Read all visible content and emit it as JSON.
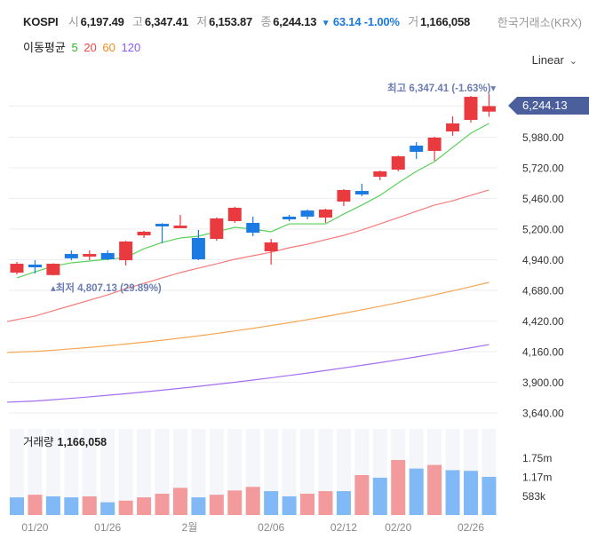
{
  "header": {
    "symbol": "KOSPI",
    "open_label": "시",
    "open": "6,197.49",
    "high_label": "고",
    "high": "6,347.41",
    "low_label": "저",
    "low": "6,153.87",
    "close_label": "종",
    "close": "6,244.13",
    "change_arrow": "▼",
    "change": "63.14",
    "change_pct": "-1.00%",
    "volume_label": "거",
    "volume": "1,166,058",
    "source": "한국거래소(KRX)"
  },
  "moving_average": {
    "label": "이동평균",
    "periods": [
      {
        "label": "5",
        "color": "#2cb52c"
      },
      {
        "label": "20",
        "color": "#f04646"
      },
      {
        "label": "60",
        "color": "#f5891f"
      },
      {
        "label": "120",
        "color": "#8a5cf5"
      }
    ]
  },
  "scale_select": {
    "value": "Linear"
  },
  "annotations": {
    "high": "최고 6,347.41 (-1.63%)▾",
    "low": "▴최저 4,807.13 (29.89%)"
  },
  "current_price_tag": "6,244.13",
  "volume_panel": {
    "label": "거래량",
    "value": "1,166,058"
  },
  "colors": {
    "up": "#e93a3f",
    "down": "#1b7be3",
    "vol_up": "#f29a9c",
    "vol_down": "#80b9f5",
    "ma5": "#5ad15a",
    "ma20": "#f77a7a",
    "ma60": "#f6a552",
    "ma120": "#a56df0",
    "tag": "#4a5f9c"
  },
  "chart_data": {
    "type": "candlestick",
    "x_tick_labels": [
      {
        "index": 1,
        "label": "01/20"
      },
      {
        "index": 5,
        "label": "01/26"
      },
      {
        "index": 10,
        "label": "2월"
      },
      {
        "index": 14,
        "label": "02/06"
      },
      {
        "index": 18,
        "label": "02/12"
      },
      {
        "index": 21,
        "label": "02/20"
      },
      {
        "index": 25,
        "label": "02/26"
      }
    ],
    "price_axis": {
      "ylim": [
        3640,
        6244.13
      ],
      "ticks": [
        "5,980.00",
        "5,720.00",
        "5,460.00",
        "5,200.00",
        "4,940.00",
        "4,680.00",
        "4,420.00",
        "4,160.00",
        "3,900.00",
        "3,640.00"
      ],
      "tick_values": [
        5980,
        5720,
        5460,
        5200,
        4940,
        4680,
        4420,
        4160,
        3900,
        3640
      ]
    },
    "candles": [
      {
        "o": 4831,
        "h": 4921,
        "l": 4816,
        "c": 4906
      },
      {
        "o": 4899,
        "h": 4936,
        "l": 4823,
        "c": 4876
      },
      {
        "o": 4810,
        "h": 4910,
        "l": 4807.13,
        "c": 4906
      },
      {
        "o": 4989,
        "h": 5019,
        "l": 4936,
        "c": 4952
      },
      {
        "o": 4967,
        "h": 5019,
        "l": 4936,
        "c": 4989
      },
      {
        "o": 4997,
        "h": 5019,
        "l": 4936,
        "c": 4944
      },
      {
        "o": 4936,
        "h": 5100,
        "l": 4891,
        "c": 5095
      },
      {
        "o": 5147,
        "h": 5185,
        "l": 5125,
        "c": 5178
      },
      {
        "o": 5245,
        "h": 5250,
        "l": 5080,
        "c": 5223
      },
      {
        "o": 5208,
        "h": 5321,
        "l": 5208,
        "c": 5230
      },
      {
        "o": 5125,
        "h": 5193,
        "l": 4936,
        "c": 4944
      },
      {
        "o": 5117,
        "h": 5300,
        "l": 5102,
        "c": 5291
      },
      {
        "o": 5268,
        "h": 5390,
        "l": 5253,
        "c": 5381
      },
      {
        "o": 5253,
        "h": 5306,
        "l": 5140,
        "c": 5170
      },
      {
        "o": 5012,
        "h": 5117,
        "l": 4899,
        "c": 5087
      },
      {
        "o": 5306,
        "h": 5321,
        "l": 5268,
        "c": 5283
      },
      {
        "o": 5358,
        "h": 5366,
        "l": 5283,
        "c": 5306
      },
      {
        "o": 5298,
        "h": 5373,
        "l": 5253,
        "c": 5366
      },
      {
        "o": 5434,
        "h": 5540,
        "l": 5396,
        "c": 5532
      },
      {
        "o": 5524,
        "h": 5585,
        "l": 5479,
        "c": 5494
      },
      {
        "o": 5645,
        "h": 5697,
        "l": 5615,
        "c": 5690
      },
      {
        "o": 5705,
        "h": 5825,
        "l": 5690,
        "c": 5818
      },
      {
        "o": 5909,
        "h": 5939,
        "l": 5796,
        "c": 5856
      },
      {
        "o": 5864,
        "h": 5985,
        "l": 5781,
        "c": 5977
      },
      {
        "o": 6029,
        "h": 6157,
        "l": 5992,
        "c": 6097
      },
      {
        "o": 6127,
        "h": 6330,
        "l": 6104,
        "c": 6323
      },
      {
        "o": 6197.49,
        "h": 6347.41,
        "l": 6153.87,
        "c": 6244.13
      }
    ],
    "ma5": [
      4786,
      4838,
      4884,
      4914,
      4929,
      4944,
      4959,
      5034,
      5087,
      5125,
      5140,
      5178,
      5215,
      5200,
      5178,
      5245,
      5245,
      5245,
      5328,
      5404,
      5487,
      5592,
      5690,
      5773,
      5894,
      6014,
      6097
    ],
    "ma20": [
      4416,
      4462,
      4507,
      4552,
      4597,
      4642,
      4695,
      4740,
      4786,
      4831,
      4869,
      4906,
      4944,
      4974,
      5004,
      5042,
      5072,
      5110,
      5147,
      5193,
      5245,
      5298,
      5351,
      5404,
      5441,
      5487,
      5532
    ],
    "ma60": [
      4153,
      4162,
      4172,
      4184,
      4196,
      4210,
      4225,
      4240,
      4257,
      4275,
      4294,
      4314,
      4336,
      4358,
      4382,
      4406,
      4432,
      4458,
      4486,
      4515,
      4545,
      4576,
      4608,
      4642,
      4676,
      4712,
      4748
    ],
    "ma120": [
      3731,
      3741,
      3752,
      3764,
      3776,
      3790,
      3803,
      3818,
      3833,
      3849,
      3865,
      3883,
      3900,
      3919,
      3938,
      3958,
      3978,
      4000,
      4022,
      4044,
      4067,
      4091,
      4116,
      4141,
      4167,
      4193,
      4220
    ],
    "volume_axis": {
      "ticks": [
        "1.75m",
        "1.17m",
        "583k"
      ],
      "tick_values": [
        1.75,
        1.17,
        0.583
      ],
      "unit": "millions"
    },
    "volume": [
      {
        "v": 0.54,
        "dir": "down"
      },
      {
        "v": 0.62,
        "dir": "up"
      },
      {
        "v": 0.57,
        "dir": "down"
      },
      {
        "v": 0.54,
        "dir": "down"
      },
      {
        "v": 0.57,
        "dir": "up"
      },
      {
        "v": 0.39,
        "dir": "down"
      },
      {
        "v": 0.44,
        "dir": "up"
      },
      {
        "v": 0.54,
        "dir": "up"
      },
      {
        "v": 0.65,
        "dir": "up"
      },
      {
        "v": 0.83,
        "dir": "up"
      },
      {
        "v": 0.54,
        "dir": "down"
      },
      {
        "v": 0.62,
        "dir": "up"
      },
      {
        "v": 0.75,
        "dir": "up"
      },
      {
        "v": 0.86,
        "dir": "up"
      },
      {
        "v": 0.73,
        "dir": "down"
      },
      {
        "v": 0.57,
        "dir": "down"
      },
      {
        "v": 0.65,
        "dir": "up"
      },
      {
        "v": 0.73,
        "dir": "up"
      },
      {
        "v": 0.73,
        "dir": "down"
      },
      {
        "v": 1.22,
        "dir": "up"
      },
      {
        "v": 1.14,
        "dir": "down"
      },
      {
        "v": 1.68,
        "dir": "up"
      },
      {
        "v": 1.42,
        "dir": "down"
      },
      {
        "v": 1.53,
        "dir": "up"
      },
      {
        "v": 1.37,
        "dir": "down"
      },
      {
        "v": 1.35,
        "dir": "down"
      },
      {
        "v": 1.166058,
        "dir": "down"
      }
    ]
  }
}
